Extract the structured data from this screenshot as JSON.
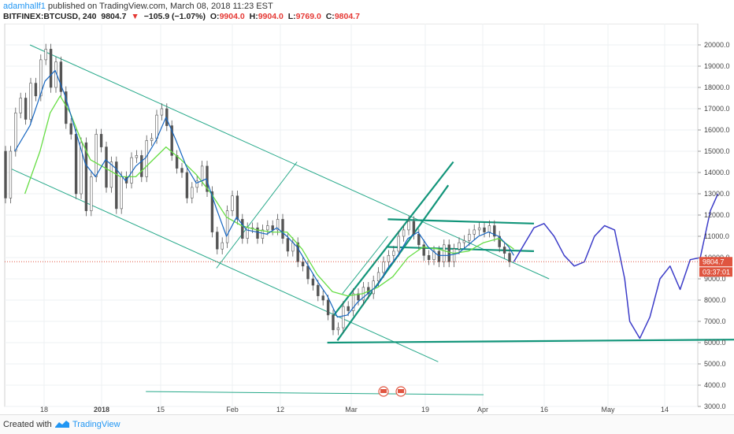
{
  "header": {
    "author": "adamhallf1",
    "published_text": "published on TradingView.com, March 08, 2018 11:23 EST",
    "symbol": "BITFINEX:BTCUSD, 240",
    "last_price": "9804.7",
    "change_arrow": "▼",
    "change": "−105.9 (−1.07%)",
    "open_label": "O:",
    "open": "9904.0",
    "high_label": "H:",
    "high": "9904.0",
    "low_label": "L:",
    "low": "9769.0",
    "close_label": "C:",
    "close": "9804.7"
  },
  "footer": {
    "created_with": "Created with",
    "brand": "TradingView"
  },
  "colors": {
    "candle": "#555555",
    "ma_fast": "#1565c0",
    "ma_slow": "#66dd44",
    "trendline": "#27a98a",
    "trendline_thick": "#12957a",
    "projection": "#3c3cc8",
    "price_line": "#e05540",
    "price_tag_bg": "#e05540"
  },
  "chart_data": {
    "type": "candlestick",
    "symbol": "BITFINEX:BTCUSD",
    "interval": "240",
    "ylim": [
      3000,
      21000
    ],
    "y_ticks": [
      "3000.0",
      "4000.0",
      "5000.0",
      "6000.0",
      "7000.0",
      "8000.0",
      "9000.0",
      "10000.0",
      "11000.0",
      "12000.0",
      "13000.0",
      "14000.0",
      "15000.0",
      "16000.0",
      "17000.0",
      "18000.0",
      "19000.0",
      "20000.0"
    ],
    "x_ticks": [
      "18",
      "2018",
      "15",
      "Feb",
      "12",
      "Mar",
      "19",
      "Apr",
      "16",
      "May",
      "14"
    ],
    "last_price_label": "9804.7",
    "countdown_label": "03:37:01",
    "price_path": [
      [
        0,
        15000
      ],
      [
        2,
        12800
      ],
      [
        4,
        15000
      ],
      [
        6,
        16800
      ],
      [
        8,
        17500
      ],
      [
        10,
        16500
      ],
      [
        12,
        18200
      ],
      [
        14,
        17600
      ],
      [
        16,
        19300
      ],
      [
        18,
        19800
      ],
      [
        20,
        18000
      ],
      [
        22,
        19200
      ],
      [
        24,
        17800
      ],
      [
        26,
        16300
      ],
      [
        28,
        15800
      ],
      [
        30,
        13000
      ],
      [
        32,
        15400
      ],
      [
        34,
        12200
      ],
      [
        36,
        13800
      ],
      [
        38,
        15800
      ],
      [
        40,
        15200
      ],
      [
        42,
        13300
      ],
      [
        44,
        14500
      ],
      [
        46,
        12300
      ],
      [
        48,
        13800
      ],
      [
        50,
        13500
      ],
      [
        52,
        14700
      ],
      [
        54,
        14800
      ],
      [
        56,
        13800
      ],
      [
        58,
        15500
      ],
      [
        60,
        15600
      ],
      [
        62,
        16700
      ],
      [
        64,
        17000
      ],
      [
        66,
        16200
      ],
      [
        68,
        14800
      ],
      [
        70,
        14200
      ],
      [
        72,
        14000
      ],
      [
        74,
        12800
      ],
      [
        76,
        13300
      ],
      [
        78,
        13600
      ],
      [
        80,
        14300
      ],
      [
        82,
        13100
      ],
      [
        84,
        11200
      ],
      [
        86,
        10400
      ],
      [
        88,
        10700
      ],
      [
        90,
        12200
      ],
      [
        92,
        12900
      ],
      [
        94,
        11800
      ],
      [
        96,
        10900
      ],
      [
        98,
        11400
      ],
      [
        100,
        11400
      ],
      [
        102,
        10900
      ],
      [
        104,
        11300
      ],
      [
        106,
        11500
      ],
      [
        108,
        11300
      ],
      [
        110,
        11800
      ],
      [
        112,
        10900
      ],
      [
        114,
        10300
      ],
      [
        116,
        10700
      ],
      [
        118,
        9800
      ],
      [
        120,
        9600
      ],
      [
        122,
        9000
      ],
      [
        124,
        8700
      ],
      [
        126,
        8200
      ],
      [
        128,
        8000
      ],
      [
        130,
        7300
      ],
      [
        132,
        6600
      ],
      [
        134,
        6700
      ],
      [
        136,
        7700
      ],
      [
        138,
        7500
      ],
      [
        140,
        8300
      ],
      [
        142,
        8000
      ],
      [
        144,
        8600
      ],
      [
        146,
        8300
      ],
      [
        148,
        8900
      ],
      [
        150,
        9300
      ],
      [
        152,
        9800
      ],
      [
        154,
        10100
      ],
      [
        156,
        10300
      ],
      [
        158,
        11000
      ],
      [
        160,
        11300
      ],
      [
        162,
        11700
      ],
      [
        164,
        11100
      ],
      [
        166,
        10600
      ],
      [
        168,
        10100
      ],
      [
        170,
        9900
      ],
      [
        172,
        10300
      ],
      [
        174,
        9800
      ],
      [
        176,
        10600
      ],
      [
        178,
        9800
      ],
      [
        180,
        10400
      ],
      [
        182,
        10700
      ],
      [
        184,
        10800
      ],
      [
        186,
        11100
      ],
      [
        188,
        11300
      ],
      [
        190,
        11400
      ],
      [
        192,
        11200
      ],
      [
        194,
        11500
      ],
      [
        196,
        11000
      ],
      [
        198,
        10500
      ],
      [
        200,
        10200
      ],
      [
        202,
        9800
      ]
    ],
    "ma_fast_path": [
      [
        4,
        15000
      ],
      [
        10,
        16200
      ],
      [
        16,
        18300
      ],
      [
        20,
        18800
      ],
      [
        24,
        17600
      ],
      [
        28,
        16000
      ],
      [
        32,
        14400
      ],
      [
        36,
        13800
      ],
      [
        40,
        14600
      ],
      [
        44,
        14200
      ],
      [
        48,
        13600
      ],
      [
        52,
        14300
      ],
      [
        56,
        14700
      ],
      [
        60,
        15500
      ],
      [
        64,
        16600
      ],
      [
        68,
        15500
      ],
      [
        72,
        14300
      ],
      [
        76,
        13500
      ],
      [
        80,
        13700
      ],
      [
        84,
        12300
      ],
      [
        88,
        11000
      ],
      [
        92,
        11900
      ],
      [
        96,
        11300
      ],
      [
        100,
        11200
      ],
      [
        104,
        11100
      ],
      [
        108,
        11400
      ],
      [
        112,
        11000
      ],
      [
        116,
        10500
      ],
      [
        120,
        9700
      ],
      [
        124,
        8900
      ],
      [
        128,
        8200
      ],
      [
        132,
        7200
      ],
      [
        136,
        7300
      ],
      [
        140,
        7900
      ],
      [
        144,
        8300
      ],
      [
        148,
        8700
      ],
      [
        152,
        9500
      ],
      [
        156,
        10100
      ],
      [
        160,
        10900
      ],
      [
        164,
        11200
      ],
      [
        168,
        10500
      ],
      [
        172,
        10100
      ],
      [
        176,
        10100
      ],
      [
        180,
        10200
      ],
      [
        184,
        10600
      ],
      [
        188,
        11000
      ],
      [
        192,
        11200
      ],
      [
        196,
        11000
      ],
      [
        200,
        10500
      ],
      [
        202,
        10100
      ]
    ],
    "ma_slow_path": [
      [
        8,
        13000
      ],
      [
        14,
        15000
      ],
      [
        18,
        16800
      ],
      [
        22,
        17600
      ],
      [
        26,
        16800
      ],
      [
        30,
        15600
      ],
      [
        34,
        14600
      ],
      [
        40,
        14200
      ],
      [
        46,
        13800
      ],
      [
        52,
        13800
      ],
      [
        58,
        14500
      ],
      [
        64,
        15200
      ],
      [
        70,
        14600
      ],
      [
        76,
        13900
      ],
      [
        82,
        13000
      ],
      [
        88,
        11900
      ],
      [
        94,
        11500
      ],
      [
        100,
        11300
      ],
      [
        106,
        11200
      ],
      [
        112,
        11200
      ],
      [
        118,
        10400
      ],
      [
        124,
        9200
      ],
      [
        130,
        8400
      ],
      [
        136,
        8200
      ],
      [
        142,
        8300
      ],
      [
        148,
        8600
      ],
      [
        154,
        9100
      ],
      [
        160,
        10000
      ],
      [
        166,
        10500
      ],
      [
        172,
        10400
      ],
      [
        178,
        10200
      ],
      [
        184,
        10300
      ],
      [
        190,
        10700
      ],
      [
        196,
        10900
      ],
      [
        202,
        10400
      ]
    ],
    "projection_path": [
      [
        202,
        9800
      ],
      [
        206,
        10600
      ],
      [
        210,
        11400
      ],
      [
        214,
        11600
      ],
      [
        218,
        11000
      ],
      [
        222,
        10100
      ],
      [
        226,
        9600
      ],
      [
        230,
        9800
      ],
      [
        234,
        11000
      ],
      [
        238,
        11500
      ],
      [
        242,
        11300
      ],
      [
        246,
        9000
      ],
      [
        248,
        7000
      ],
      [
        252,
        6200
      ],
      [
        256,
        7200
      ],
      [
        260,
        9000
      ],
      [
        264,
        9600
      ],
      [
        268,
        8500
      ],
      [
        272,
        9900
      ],
      [
        276,
        10000
      ],
      [
        280,
        12200
      ],
      [
        283,
        13000
      ]
    ],
    "trendlines": [
      {
        "name": "descending-channel-upper",
        "points": [
          [
            10,
            20000
          ],
          [
            216,
            9000
          ]
        ]
      },
      {
        "name": "descending-channel-lower",
        "points": [
          [
            2,
            14200
          ],
          [
            172,
            5100
          ]
        ]
      },
      {
        "name": "mid-projection-line",
        "points": [
          [
            84,
            9500
          ],
          [
            116,
            14500
          ]
        ]
      },
      {
        "name": "rising-channel-outer-1",
        "points": [
          [
            130,
            7200
          ],
          [
            178,
            14500
          ]
        ]
      },
      {
        "name": "rising-channel-outer-2",
        "points": [
          [
            132,
            6100
          ],
          [
            176,
            13400
          ]
        ]
      },
      {
        "name": "rising-channel-inner-1",
        "points": [
          [
            134,
            8300
          ],
          [
            152,
            11000
          ]
        ]
      },
      {
        "name": "range-top",
        "points": [
          [
            152,
            11800
          ],
          [
            210,
            11600
          ]
        ]
      },
      {
        "name": "range-bottom",
        "points": [
          [
            152,
            10500
          ],
          [
            210,
            10300
          ]
        ]
      },
      {
        "name": "support-6000",
        "points": [
          [
            128,
            6000
          ],
          [
            300,
            6150
          ]
        ]
      },
      {
        "name": "lower-guide",
        "points": [
          [
            56,
            3700
          ],
          [
            190,
            3550
          ]
        ]
      }
    ]
  }
}
